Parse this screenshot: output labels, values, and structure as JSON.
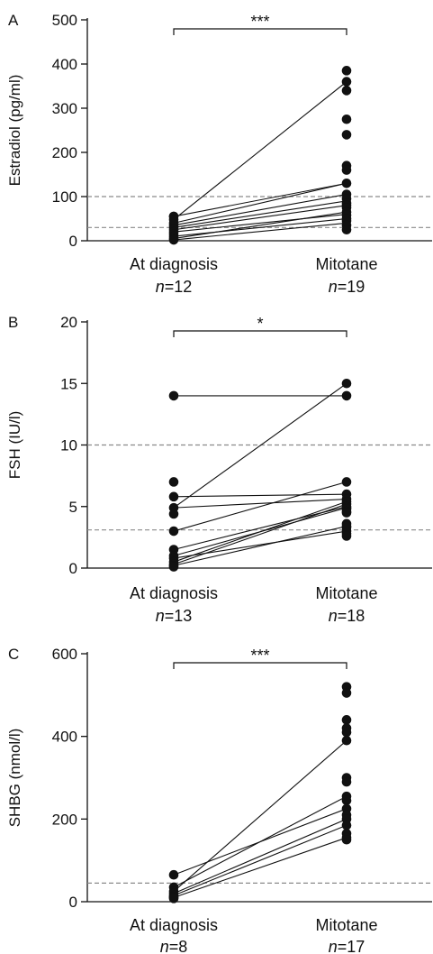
{
  "chart_data": [
    {
      "type": "scatter",
      "panel": "A",
      "ylabel": "Estradiol (pg/ml)",
      "ylim": [
        0,
        500
      ],
      "yticks": [
        0,
        100,
        200,
        300,
        400,
        500
      ],
      "reference_lines": [
        30,
        100
      ],
      "significance": "***",
      "groups": [
        {
          "label": "At diagnosis",
          "n_prefix": "n",
          "n_text": "=12"
        },
        {
          "label": "Mitotane",
          "n_prefix": "n",
          "n_text": "=19"
        }
      ],
      "points": [
        [
          55,
          55,
          40,
          35,
          30,
          25,
          20,
          15,
          10,
          5,
          2,
          48
        ],
        [
          385,
          360,
          340,
          275,
          240,
          170,
          160,
          130,
          105,
          95,
          85,
          80,
          75,
          65,
          58,
          50,
          45,
          35,
          25
        ]
      ],
      "pairs": [
        [
          48,
          360
        ],
        [
          55,
          130
        ],
        [
          40,
          130
        ],
        [
          35,
          105
        ],
        [
          30,
          90
        ],
        [
          25,
          80
        ],
        [
          20,
          60
        ],
        [
          10,
          50
        ],
        [
          5,
          65
        ],
        [
          2,
          40
        ]
      ]
    },
    {
      "type": "scatter",
      "panel": "B",
      "ylabel": "FSH (IU/l)",
      "ylim": [
        0,
        20
      ],
      "yticks": [
        0,
        5,
        10,
        15,
        20
      ],
      "reference_lines": [
        3.1,
        10
      ],
      "significance": "*",
      "groups": [
        {
          "label": "At diagnosis",
          "n_prefix": "n",
          "n_text": "=13"
        },
        {
          "label": "Mitotane",
          "n_prefix": "n",
          "n_text": "=18"
        }
      ],
      "points": [
        [
          14,
          7,
          5.8,
          4.9,
          4.4,
          3.0,
          1.5,
          1.0,
          0.8,
          0.5,
          0.3,
          0.2,
          0.1
        ],
        [
          15,
          14,
          7,
          6.0,
          5.6,
          5.4,
          5.2,
          5.0,
          4.9,
          4.8,
          4.6,
          4.5,
          3.6,
          3.3,
          3.0,
          2.8,
          2.6,
          3.4
        ]
      ],
      "pairs": [
        [
          14,
          14
        ],
        [
          5.8,
          6.0
        ],
        [
          4.9,
          15
        ],
        [
          4.9,
          5.6
        ],
        [
          3.0,
          7
        ],
        [
          1.5,
          5.0
        ],
        [
          1.0,
          4.9
        ],
        [
          0.8,
          3.0
        ],
        [
          0.5,
          5.4
        ],
        [
          0.3,
          5.2
        ],
        [
          0.2,
          3.4
        ]
      ]
    },
    {
      "type": "scatter",
      "panel": "C",
      "ylabel": "SHBG (nmol/l)",
      "ylim": [
        0,
        600
      ],
      "yticks": [
        0,
        200,
        400,
        600
      ],
      "reference_lines": [
        45
      ],
      "significance": "***",
      "groups": [
        {
          "label": "At diagnosis",
          "n_prefix": "n",
          "n_text": "=8"
        },
        {
          "label": "Mitotane",
          "n_prefix": "n",
          "n_text": "=17"
        }
      ],
      "points": [
        [
          65,
          35,
          25,
          20,
          15,
          12,
          10,
          8
        ],
        [
          520,
          505,
          440,
          420,
          410,
          390,
          300,
          290,
          255,
          245,
          225,
          210,
          200,
          185,
          165,
          155,
          150
        ]
      ],
      "pairs": [
        [
          65,
          225
        ],
        [
          35,
          255
        ],
        [
          25,
          390
        ],
        [
          20,
          200
        ],
        [
          15,
          185
        ],
        [
          10,
          155
        ]
      ]
    }
  ]
}
